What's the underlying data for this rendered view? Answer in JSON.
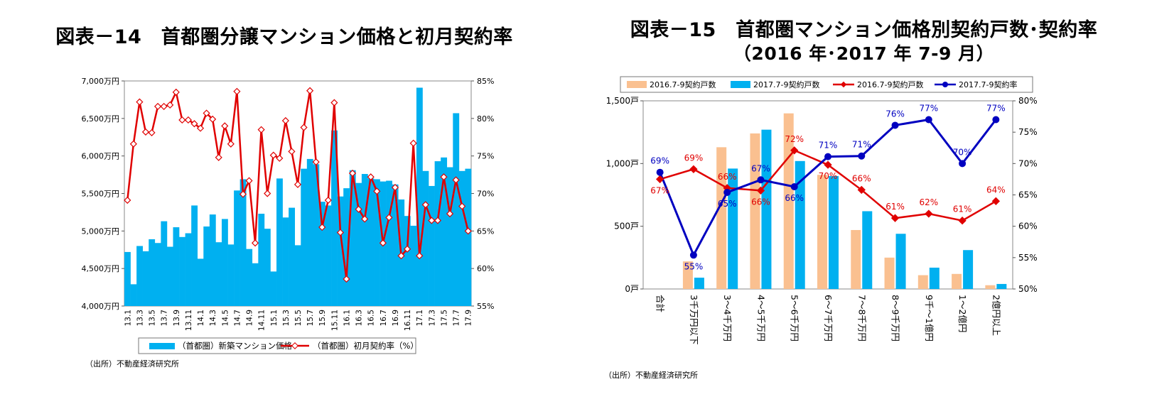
{
  "chart_data": [
    {
      "type": "bar+line",
      "title": "図表－14　首都圏分譲マンション価格と初月契約率",
      "source": "（出所）不動産経済研究所",
      "x_ticks": [
        "13.1",
        "13.3",
        "13.5",
        "13.7",
        "13.9",
        "13.11",
        "14.1",
        "14.3",
        "14.5",
        "14.7",
        "14.9",
        "14.11",
        "15.1",
        "15.3",
        "15.5",
        "15.7",
        "15.9",
        "15.11",
        "16.1",
        "16.3",
        "16.5",
        "16.7",
        "16.9",
        "16.11",
        "17.1",
        "17.3",
        "17.5",
        "17.7",
        "17.9"
      ],
      "y_left": {
        "min": 4000,
        "max": 7000,
        "step": 500,
        "tick_labels": [
          "4,000万円",
          "4,500万円",
          "5,000万円",
          "5,500万円",
          "6,000万円",
          "6,500万円",
          "7,000万円"
        ]
      },
      "y_right": {
        "min": 55,
        "max": 85,
        "step": 5,
        "tick_labels": [
          "55%",
          "60%",
          "65%",
          "70%",
          "75%",
          "80%",
          "85%"
        ]
      },
      "series": [
        {
          "name": "（首都圏）新築マンション価格",
          "kind": "bar",
          "color": "#00B0F0",
          "values": [
            4720,
            4290,
            4800,
            4730,
            4890,
            4840,
            5130,
            4790,
            5050,
            4920,
            4970,
            5340,
            4630,
            5060,
            5220,
            4850,
            5160,
            4820,
            5540,
            5690,
            4760,
            4570,
            5230,
            5030,
            4460,
            5700,
            5180,
            5310,
            4810,
            5830,
            5960,
            5890,
            5390,
            5340,
            6340,
            5460,
            5570,
            5810,
            5640,
            5760,
            5700,
            5690,
            5660,
            5670,
            5620,
            5420,
            5200,
            5070,
            6910,
            5800,
            5600,
            5930,
            5980,
            5850,
            6570,
            5800,
            5830
          ]
        },
        {
          "name": "（首都圏）初月契約率（%）",
          "kind": "line",
          "color": "#E00000",
          "values": [
            69.1,
            76.6,
            82.2,
            78.2,
            78.1,
            81.6,
            81.6,
            81.8,
            83.5,
            79.8,
            79.8,
            79.3,
            78.7,
            80.7,
            79.9,
            74.8,
            79.0,
            76.6,
            83.6,
            69.9,
            71.7,
            63.4,
            78.5,
            70.0,
            75.1,
            74.7,
            79.7,
            75.6,
            71.2,
            78.8,
            83.7,
            74.2,
            65.5,
            69.1,
            82.1,
            64.8,
            58.6,
            72.7,
            67.9,
            66.6,
            72.2,
            70.3,
            63.4,
            66.8,
            70.8,
            61.7,
            62.6,
            76.7,
            61.7,
            68.5,
            66.4,
            66.4,
            72.2,
            67.3,
            71.8,
            68.3,
            65.0
          ]
        }
      ]
    },
    {
      "type": "bar+line",
      "title_line1": "図表－15　首都圏マンション価格別契約戸数･契約率",
      "title_line2": "（2016 年･2017 年 7-9 月）",
      "source": "（出所）不動産経済研究所",
      "categories": [
        "合計",
        "3千万円以下",
        "3～4千万円",
        "4～5千万円",
        "5～6千万円",
        "6～7千万円",
        "7～8千万円",
        "8～9千万円",
        "9千～1億円",
        "1～2億円",
        "2億円以上"
      ],
      "y_left": {
        "min": 0,
        "max": 1500,
        "tick_labels": [
          "0戸",
          "500戸",
          "1,000戸",
          "1,500戸"
        ]
      },
      "y_right": {
        "min": 50,
        "max": 80,
        "tick_labels": [
          "50%",
          "55%",
          "60%",
          "65%",
          "70%",
          "75%",
          "80%"
        ]
      },
      "series": [
        {
          "name": "2016.7-9契約戸数",
          "kind": "bar",
          "color": "#FAC090",
          "values": [
            null,
            220,
            1130,
            1240,
            1400,
            910,
            470,
            250,
            110,
            120,
            30
          ]
        },
        {
          "name": "2017.7-9契約戸数",
          "kind": "bar",
          "color": "#00B0F0",
          "values": [
            null,
            90,
            960,
            1270,
            1020,
            900,
            620,
            440,
            170,
            310,
            40
          ]
        },
        {
          "name": "2016.7-9契約戸数",
          "kind": "line",
          "color": "#E00000",
          "values": [
            67.5,
            69.1,
            66.1,
            65.7,
            72.1,
            69.8,
            65.8,
            61.3,
            62.0,
            60.9,
            64.0
          ],
          "labels": [
            "67%",
            "69%",
            "66%",
            "66%",
            "72%",
            "70%",
            "66%",
            "61%",
            "62%",
            "61%",
            "64%"
          ]
        },
        {
          "name": "2017.7-9契約率",
          "kind": "line",
          "color": "#0000C0",
          "values": [
            68.6,
            55.4,
            65.4,
            67.4,
            66.3,
            71.1,
            71.2,
            76.1,
            77.0,
            70.0,
            77.0
          ],
          "labels": [
            "69%",
            "55%",
            "65%",
            "67%",
            "66%",
            "71%",
            "71%",
            "76%",
            "77%",
            "70%",
            "77%"
          ]
        }
      ]
    }
  ]
}
